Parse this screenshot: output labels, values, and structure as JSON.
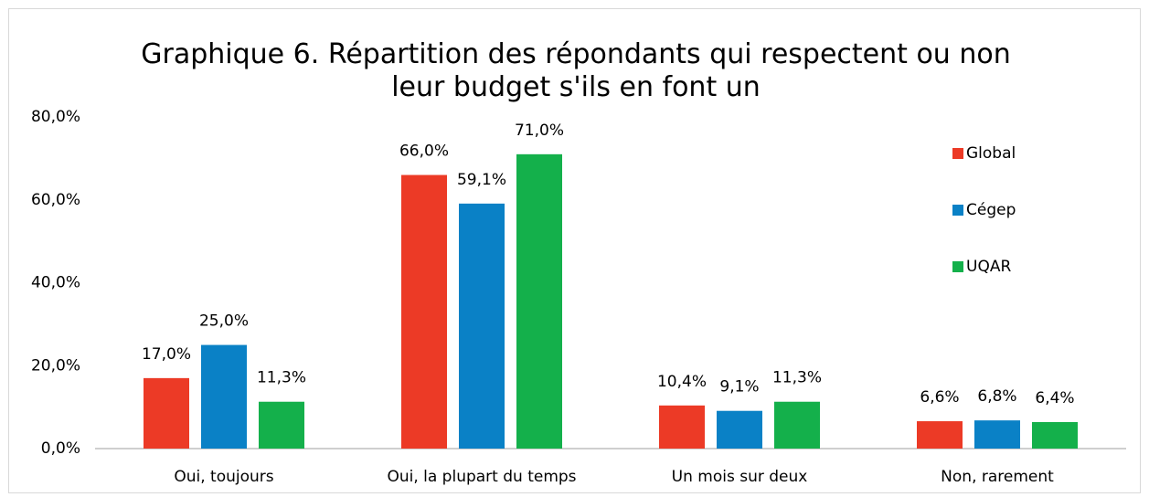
{
  "chart_data": {
    "type": "bar",
    "title": "Graphique 6. Répartition des répondants qui respectent ou non leur budget s'ils en font un",
    "categories": [
      "Oui, toujours",
      "Oui, la plupart du temps",
      "Un mois sur deux",
      "Non, rarement"
    ],
    "series": [
      {
        "name": "Global",
        "color": "#ec3a26",
        "values": [
          17.0,
          66.0,
          10.4,
          6.6
        ],
        "value_labels": [
          "17,0%",
          "66,0%",
          "10,4%",
          "6,6%"
        ]
      },
      {
        "name": "Cégep",
        "color": "#0a81c6",
        "values": [
          25.0,
          59.1,
          9.1,
          6.8
        ],
        "value_labels": [
          "25,0%",
          "59,1%",
          "9,1%",
          "6,8%"
        ]
      },
      {
        "name": "UQAR",
        "color": "#14b04b",
        "values": [
          11.3,
          71.0,
          11.3,
          6.4
        ],
        "value_labels": [
          "11,3%",
          "71,0%",
          "11,3%",
          "6,4%"
        ]
      }
    ],
    "ylim": [
      0,
      80
    ],
    "yticks": [
      {
        "value": 0,
        "label": "0,0%"
      },
      {
        "value": 20,
        "label": "20,0%"
      },
      {
        "value": 40,
        "label": "40,0%"
      },
      {
        "value": 60,
        "label": "60,0%"
      },
      {
        "value": 80,
        "label": "80,0%"
      }
    ],
    "grid": false,
    "legend": "right"
  }
}
